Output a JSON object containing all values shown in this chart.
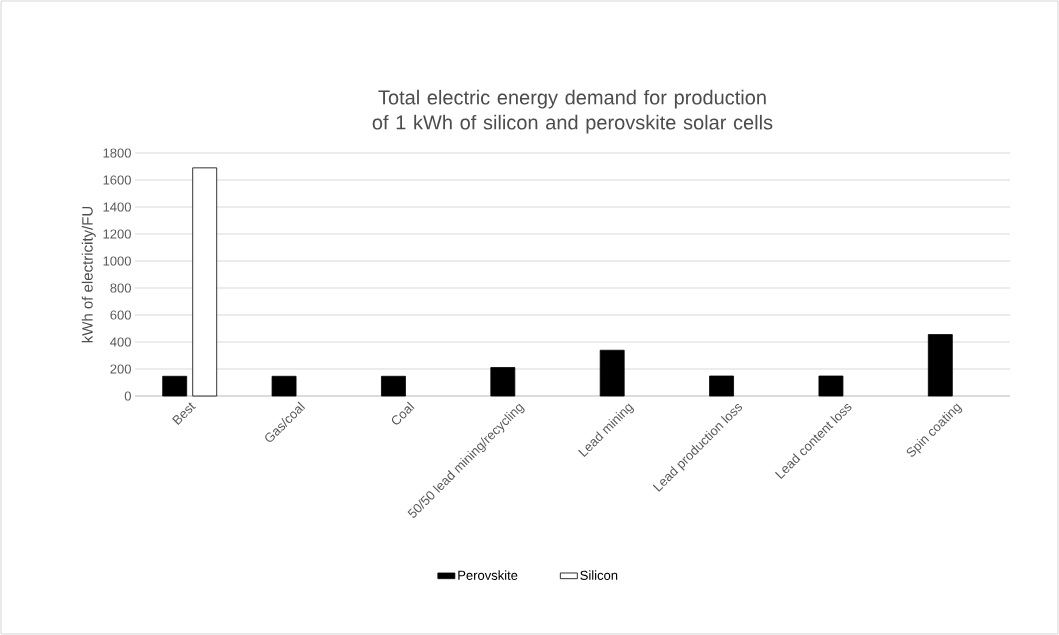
{
  "chart_data": {
    "type": "bar",
    "title": "Total electric energy demand for production of 1 kWh of silicon and perovskite solar cells",
    "ylabel": "kWh of electricity/FU",
    "categories": [
      "Best",
      "Gas/coal",
      "Coal",
      "50/50 lead mining/recycling",
      "Lead mining",
      "Lead production loss",
      "Lead content loss",
      "Spin coating"
    ],
    "series": [
      {
        "name": "Perovskite",
        "color": "#000000",
        "values": [
          146,
          146,
          146,
          211,
          339,
          148,
          148,
          455
        ]
      },
      {
        "name": "Silicon",
        "color": "#ffffff",
        "values": [
          1690,
          null,
          null,
          null,
          null,
          null,
          null,
          null
        ]
      }
    ],
    "ylim": [
      0,
      1800
    ],
    "yticks": [
      0,
      200,
      400,
      600,
      800,
      1000,
      1200,
      1400,
      1600,
      1800
    ],
    "grid": "y",
    "legend": "bottom"
  }
}
